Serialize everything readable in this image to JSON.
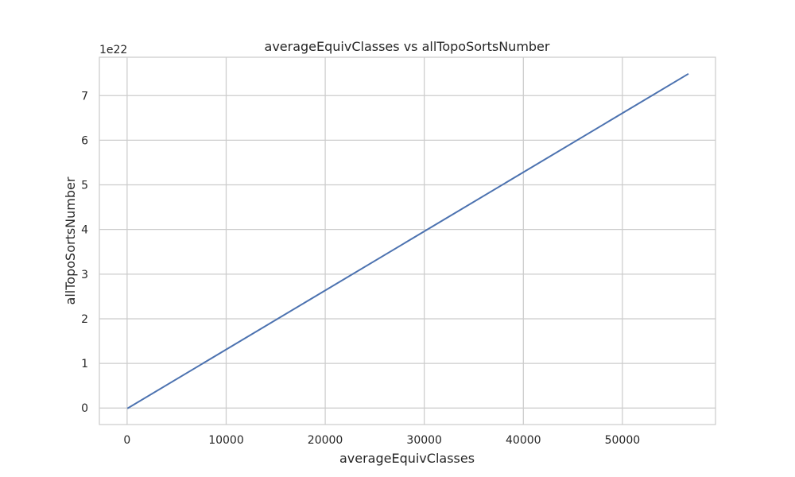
{
  "chart_data": {
    "type": "line",
    "title": "averageEquivClasses vs allTopoSortsNumber",
    "xlabel": "averageEquivClasses",
    "ylabel": "allTopoSortsNumber",
    "y_scale_label": "1e22",
    "xlim": [
      -2800,
      59400
    ],
    "ylim": [
      -0.37,
      7.86
    ],
    "x_ticks": [
      0,
      10000,
      20000,
      30000,
      40000,
      50000
    ],
    "x_tick_labels": [
      "0",
      "10000",
      "20000",
      "30000",
      "40000",
      "50000"
    ],
    "y_ticks": [
      0,
      1,
      2,
      3,
      4,
      5,
      6,
      7
    ],
    "y_tick_labels": [
      "0",
      "1",
      "2",
      "3",
      "4",
      "5",
      "6",
      "7"
    ],
    "grid": true,
    "series": [
      {
        "color": "#4c72b0",
        "x": [
          100,
          56600
        ],
        "y": [
          0,
          7.48
        ]
      }
    ]
  }
}
